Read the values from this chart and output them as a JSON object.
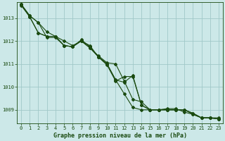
{
  "bg_color": "#cce8e8",
  "grid_color": "#a0c8c8",
  "line_color": "#1a4a10",
  "xlabel": "Graphe pression niveau de la mer (hPa)",
  "xlim": [
    -0.5,
    23.5
  ],
  "ylim": [
    1008.4,
    1013.7
  ],
  "yticks": [
    1009,
    1010,
    1011,
    1012,
    1013
  ],
  "xticks": [
    0,
    1,
    2,
    3,
    4,
    5,
    6,
    7,
    8,
    9,
    10,
    11,
    12,
    13,
    14,
    15,
    16,
    17,
    18,
    19,
    20,
    21,
    22,
    23
  ],
  "series": [
    [
      1013.6,
      1013.1,
      1012.8,
      1012.4,
      1012.2,
      1012.0,
      1011.8,
      1012.0,
      1011.8,
      1011.3,
      1011.0,
      1010.3,
      1010.2,
      1010.5,
      1009.2,
      1009.0,
      1009.0,
      1009.0,
      1009.0,
      1009.0,
      1008.8,
      1008.65,
      1008.65,
      1008.65
    ],
    [
      1013.6,
      1013.1,
      1012.8,
      1012.15,
      1012.15,
      1011.8,
      1011.75,
      1012.05,
      1011.75,
      1011.3,
      1010.95,
      1010.25,
      1010.45,
      1010.45,
      1009.2,
      1009.0,
      1009.0,
      1009.05,
      1009.05,
      1008.9,
      1008.8,
      1008.65,
      1008.65,
      1008.6
    ],
    [
      1013.6,
      1013.05,
      1012.35,
      1012.2,
      1012.2,
      1011.8,
      1011.75,
      1012.0,
      1011.7,
      1011.35,
      1011.05,
      1011.0,
      1010.25,
      1009.45,
      1009.35,
      1009.0,
      1009.0,
      1009.0,
      1009.0,
      1009.0,
      1008.85,
      1008.65,
      1008.65,
      1008.6
    ],
    [
      1013.55,
      1013.05,
      1012.35,
      1012.2,
      1012.2,
      1011.8,
      1011.75,
      1012.0,
      1011.7,
      1011.3,
      1011.0,
      1010.3,
      1009.7,
      1009.1,
      1009.0,
      1009.0,
      1009.0,
      1009.0,
      1009.0,
      1009.0,
      1008.85,
      1008.65,
      1008.65,
      1008.6
    ]
  ],
  "marker": "D",
  "marker_size": 2.0,
  "line_width": 0.8,
  "tick_fontsize": 5.0,
  "xlabel_fontsize": 6.0,
  "fig_width": 3.2,
  "fig_height": 2.0,
  "dpi": 100
}
